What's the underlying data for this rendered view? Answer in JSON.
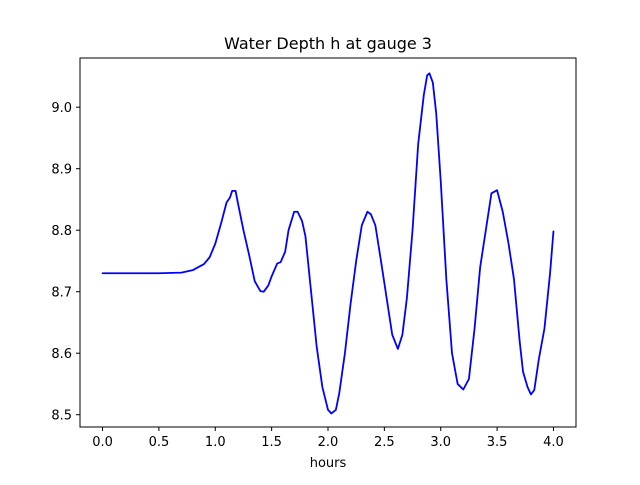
{
  "chart_data": {
    "type": "line",
    "title": "Water Depth h at gauge 3",
    "xlabel": "hours",
    "ylabel": "",
    "xlim": [
      -0.2,
      4.2
    ],
    "ylim": [
      8.48,
      9.08
    ],
    "xticks": [
      0.0,
      0.5,
      1.0,
      1.5,
      2.0,
      2.5,
      3.0,
      3.5,
      4.0
    ],
    "xtick_labels": [
      "0.0",
      "0.5",
      "1.0",
      "1.5",
      "2.0",
      "2.5",
      "3.0",
      "3.5",
      "4.0"
    ],
    "yticks": [
      8.5,
      8.6,
      8.7,
      8.8,
      8.9,
      9.0
    ],
    "ytick_labels": [
      "8.5",
      "8.6",
      "8.7",
      "8.8",
      "8.9",
      "9.0"
    ],
    "grid": false,
    "series": [
      {
        "color": "#0000ff",
        "points": [
          [
            0.0,
            8.73
          ],
          [
            0.3,
            8.73
          ],
          [
            0.5,
            8.73
          ],
          [
            0.7,
            8.731
          ],
          [
            0.8,
            8.735
          ],
          [
            0.9,
            8.745
          ],
          [
            0.95,
            8.756
          ],
          [
            1.0,
            8.778
          ],
          [
            1.05,
            8.81
          ],
          [
            1.1,
            8.845
          ],
          [
            1.13,
            8.853
          ],
          [
            1.15,
            8.864
          ],
          [
            1.18,
            8.864
          ],
          [
            1.2,
            8.845
          ],
          [
            1.25,
            8.8
          ],
          [
            1.3,
            8.76
          ],
          [
            1.35,
            8.717
          ],
          [
            1.4,
            8.701
          ],
          [
            1.43,
            8.7
          ],
          [
            1.47,
            8.71
          ],
          [
            1.5,
            8.725
          ],
          [
            1.55,
            8.746
          ],
          [
            1.58,
            8.748
          ],
          [
            1.62,
            8.765
          ],
          [
            1.65,
            8.8
          ],
          [
            1.7,
            8.83
          ],
          [
            1.73,
            8.83
          ],
          [
            1.77,
            8.815
          ],
          [
            1.8,
            8.79
          ],
          [
            1.85,
            8.7
          ],
          [
            1.9,
            8.61
          ],
          [
            1.95,
            8.545
          ],
          [
            2.0,
            8.508
          ],
          [
            2.03,
            8.502
          ],
          [
            2.07,
            8.508
          ],
          [
            2.1,
            8.535
          ],
          [
            2.15,
            8.6
          ],
          [
            2.2,
            8.68
          ],
          [
            2.25,
            8.75
          ],
          [
            2.3,
            8.808
          ],
          [
            2.35,
            8.83
          ],
          [
            2.38,
            8.826
          ],
          [
            2.42,
            8.808
          ],
          [
            2.47,
            8.75
          ],
          [
            2.52,
            8.69
          ],
          [
            2.57,
            8.63
          ],
          [
            2.62,
            8.607
          ],
          [
            2.66,
            8.63
          ],
          [
            2.7,
            8.69
          ],
          [
            2.75,
            8.8
          ],
          [
            2.8,
            8.94
          ],
          [
            2.85,
            9.02
          ],
          [
            2.88,
            9.052
          ],
          [
            2.9,
            9.055
          ],
          [
            2.93,
            9.04
          ],
          [
            2.96,
            8.99
          ],
          [
            3.0,
            8.88
          ],
          [
            3.05,
            8.72
          ],
          [
            3.1,
            8.6
          ],
          [
            3.15,
            8.55
          ],
          [
            3.2,
            8.541
          ],
          [
            3.25,
            8.558
          ],
          [
            3.3,
            8.64
          ],
          [
            3.35,
            8.74
          ],
          [
            3.4,
            8.8
          ],
          [
            3.45,
            8.86
          ],
          [
            3.5,
            8.865
          ],
          [
            3.55,
            8.83
          ],
          [
            3.6,
            8.78
          ],
          [
            3.65,
            8.72
          ],
          [
            3.7,
            8.62
          ],
          [
            3.73,
            8.57
          ],
          [
            3.77,
            8.545
          ],
          [
            3.8,
            8.533
          ],
          [
            3.83,
            8.54
          ],
          [
            3.87,
            8.59
          ],
          [
            3.92,
            8.64
          ],
          [
            3.97,
            8.73
          ],
          [
            4.0,
            8.798
          ]
        ]
      }
    ]
  }
}
